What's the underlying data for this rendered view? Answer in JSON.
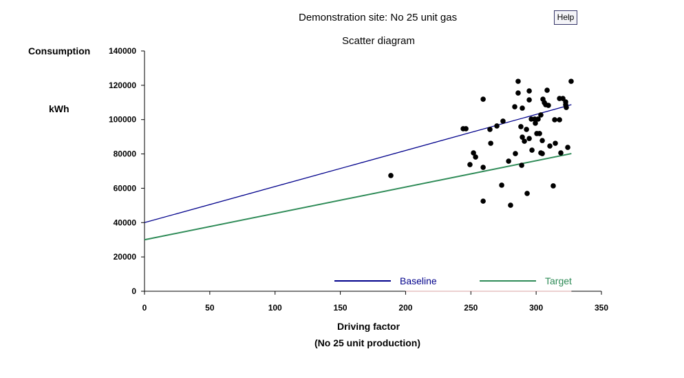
{
  "header": {
    "title": "Demonstration site: No 25 unit gas",
    "help_label": "Help"
  },
  "chart_data": {
    "type": "scatter",
    "title": "Scatter diagram",
    "ylabel": "Consumption",
    "yunit": "kWh",
    "xlabel": "Driving factor",
    "xsublabel": "(No 25 unit production)",
    "xlim": [
      0,
      350
    ],
    "ylim": [
      0,
      140000
    ],
    "xticks": [
      0,
      50,
      100,
      150,
      200,
      250,
      300,
      350
    ],
    "yticks": [
      0,
      20000,
      40000,
      60000,
      80000,
      100000,
      120000,
      140000
    ],
    "grid": false,
    "legend_placement": "bottom-right",
    "points": [
      [
        188.7,
        67400
      ],
      [
        244.1,
        94700
      ],
      [
        246.2,
        94700
      ],
      [
        259.4,
        111900
      ],
      [
        259.4,
        72200
      ],
      [
        259.4,
        52500
      ],
      [
        249.3,
        73800
      ],
      [
        252.0,
        80600
      ],
      [
        253.6,
        78200
      ],
      [
        264.6,
        94300
      ],
      [
        265.2,
        86200
      ],
      [
        269.9,
        96300
      ],
      [
        273.6,
        61800
      ],
      [
        274.6,
        99100
      ],
      [
        278.9,
        75800
      ],
      [
        280.4,
        50100
      ],
      [
        283.6,
        107500
      ],
      [
        284.1,
        80200
      ],
      [
        286.2,
        122300
      ],
      [
        286.2,
        115500
      ],
      [
        288.3,
        95900
      ],
      [
        288.9,
        73400
      ],
      [
        289.4,
        106700
      ],
      [
        289.4,
        89800
      ],
      [
        291.0,
        87400
      ],
      [
        292.6,
        94300
      ],
      [
        293.1,
        57000
      ],
      [
        294.7,
        116700
      ],
      [
        294.7,
        111500
      ],
      [
        294.7,
        89000
      ],
      [
        296.3,
        100300
      ],
      [
        296.8,
        82200
      ],
      [
        298.9,
        100300
      ],
      [
        299.4,
        97900
      ],
      [
        301.5,
        100300
      ],
      [
        300.5,
        91900
      ],
      [
        302.6,
        91900
      ],
      [
        303.6,
        102700
      ],
      [
        303.6,
        80600
      ],
      [
        304.7,
        80200
      ],
      [
        304.7,
        87800
      ],
      [
        305.2,
        111900
      ],
      [
        306.3,
        109900
      ],
      [
        307.3,
        108700
      ],
      [
        308.4,
        117100
      ],
      [
        309.4,
        108300
      ],
      [
        310.5,
        84600
      ],
      [
        313.1,
        61400
      ],
      [
        314.2,
        99900
      ],
      [
        314.7,
        86200
      ],
      [
        317.9,
        99900
      ],
      [
        317.9,
        112300
      ],
      [
        318.9,
        80600
      ],
      [
        320.5,
        112300
      ],
      [
        322.6,
        110300
      ],
      [
        322.6,
        108700
      ],
      [
        323.1,
        107100
      ],
      [
        324.2,
        83800
      ],
      [
        326.8,
        122300
      ]
    ],
    "series": [
      {
        "name": "Baseline",
        "color": "#00008b",
        "x": [
          0,
          327
        ],
        "y": [
          40000,
          108700
        ]
      },
      {
        "name": "Target",
        "color": "#2e8b57",
        "x": [
          0,
          327
        ],
        "y": [
          30000,
          80200
        ]
      }
    ],
    "zero_line": {
      "color": "#d9a0a0",
      "x": [
        200,
        327
      ]
    }
  }
}
